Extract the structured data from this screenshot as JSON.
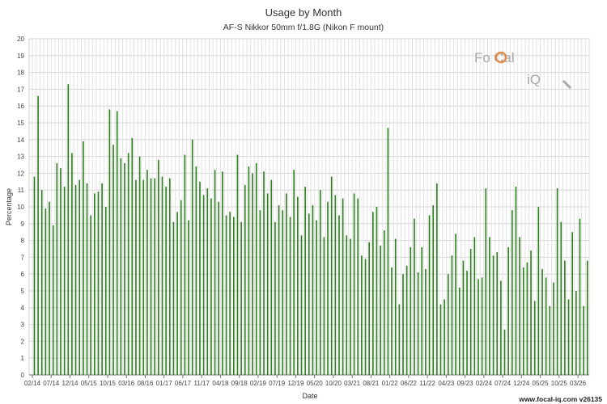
{
  "chart_data": {
    "type": "bar",
    "title": "Usage by Month",
    "subtitle": "AF-S Nikkor 50mm f/1.8G (Nikon F mount)",
    "xlabel": "Date",
    "ylabel": "Percentage",
    "ylim": [
      0,
      20
    ],
    "yticks": [
      0,
      1,
      2,
      3,
      4,
      5,
      6,
      7,
      8,
      9,
      10,
      11,
      12,
      13,
      14,
      15,
      16,
      17,
      18,
      19,
      20
    ],
    "grid": true,
    "bar_color": "#2e7d1f",
    "start_month": "2014-02",
    "tick_labels": [
      "02/14",
      "07/14",
      "12/14",
      "05/15",
      "10/15",
      "03/16",
      "08/16",
      "01/17",
      "06/17",
      "11/17",
      "04/18",
      "09/18",
      "02/19",
      "07/19",
      "12/19",
      "05/20",
      "10/20",
      "03/21",
      "08/21",
      "01/22",
      "06/22",
      "11/22",
      "04/23",
      "09/23",
      "02/24",
      "07/24",
      "12/24",
      "05/25",
      "10/25",
      "03/26"
    ],
    "values": [
      11.8,
      16.6,
      11.0,
      9.9,
      10.3,
      8.9,
      12.6,
      12.3,
      11.2,
      17.3,
      13.2,
      11.3,
      11.6,
      13.9,
      11.4,
      9.5,
      10.8,
      10.9,
      11.4,
      10.0,
      15.8,
      13.7,
      15.7,
      12.9,
      12.6,
      13.2,
      14.1,
      11.6,
      13.0,
      11.6,
      12.2,
      11.7,
      11.7,
      12.8,
      11.8,
      11.2,
      11.7,
      9.1,
      9.7,
      10.4,
      13.1,
      9.2,
      14.0,
      12.4,
      11.5,
      10.7,
      11.1,
      10.5,
      12.2,
      10.3,
      12.1,
      9.5,
      9.7,
      9.4,
      13.1,
      9.1,
      11.3,
      12.4,
      12.0,
      12.6,
      9.8,
      12.1,
      10.8,
      11.6,
      9.1,
      10.1,
      9.8,
      10.8,
      9.4,
      12.2,
      10.6,
      8.3,
      11.2,
      9.6,
      10.1,
      9.2,
      11.0,
      8.2,
      10.3,
      11.8,
      10.7,
      9.5,
      10.5,
      8.3,
      8.1,
      10.8,
      10.5,
      7.1,
      6.9,
      7.9,
      9.7,
      10.0,
      7.7,
      8.6,
      14.7,
      6.4,
      8.1,
      4.2,
      6.0,
      6.5,
      7.6,
      9.3,
      6.1,
      7.6,
      6.3,
      9.5,
      10.1,
      11.4,
      4.2,
      4.5,
      6.0,
      7.1,
      8.4,
      5.2,
      6.8,
      6.2,
      7.5,
      8.2,
      5.7,
      5.8,
      11.1,
      8.2,
      7.1,
      7.3,
      5.6,
      2.7,
      7.6,
      9.8,
      11.2,
      8.2,
      6.4,
      6.7,
      7.4,
      4.4,
      10.0,
      6.3,
      5.8,
      4.1,
      5.5,
      11.1,
      9.1,
      6.8,
      4.5,
      8.5,
      5.0,
      9.3,
      4.1,
      6.8
    ]
  },
  "footer": "www.focal-iq.com  v26135",
  "logo": {
    "part1": "Fo",
    "part2": "Cal",
    "part3": "iQ"
  }
}
